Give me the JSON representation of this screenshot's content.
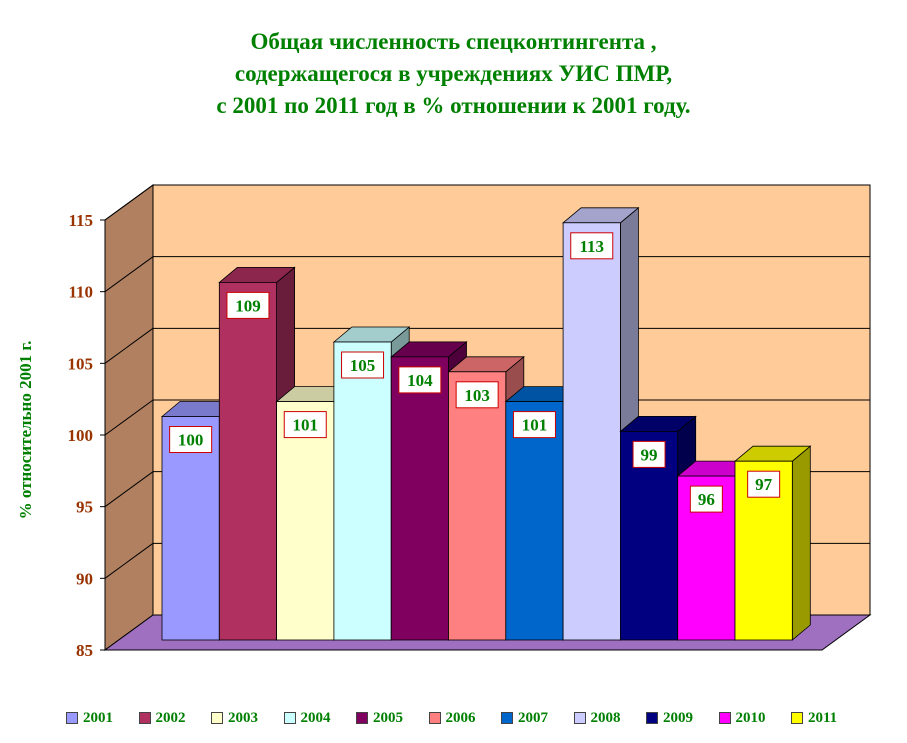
{
  "title_lines": [
    "Общая численность спецконтингента ,",
    "содержащегося в учреждениях УИС ПМР,",
    "с 2001 по 2011 год в % отношении к 2001 году."
  ],
  "chart_data": {
    "type": "bar",
    "categories": [
      "2001",
      "2002",
      "2003",
      "2004",
      "2005",
      "2006",
      "2007",
      "2008",
      "2009",
      "2010",
      "2011"
    ],
    "values": [
      100,
      109,
      101,
      105,
      104,
      103,
      101,
      113,
      99,
      96,
      97
    ],
    "data_labels": [
      "100",
      "109",
      "101",
      "105",
      "104",
      "103",
      "101",
      "113",
      "99",
      "96",
      "97"
    ],
    "ylabel": "% относительно 2001 г.",
    "xlabel": "",
    "ylim": [
      85,
      115
    ],
    "yticks": [
      85,
      90,
      95,
      100,
      105,
      110,
      115
    ],
    "grid": true,
    "legend": "bottom",
    "three_d": true,
    "colors": [
      "#9999ff",
      "#b03060",
      "#ffffcc",
      "#ccffff",
      "#800060",
      "#ff8080",
      "#0066cc",
      "#ccccff",
      "#000080",
      "#ff00ff",
      "#ffff00"
    ],
    "wall_color": "#ffcc99",
    "side_wall_color": "#b08060",
    "floor_color": "#a070c0",
    "axis_tick_color": "#993300",
    "label_color": "#008000"
  }
}
